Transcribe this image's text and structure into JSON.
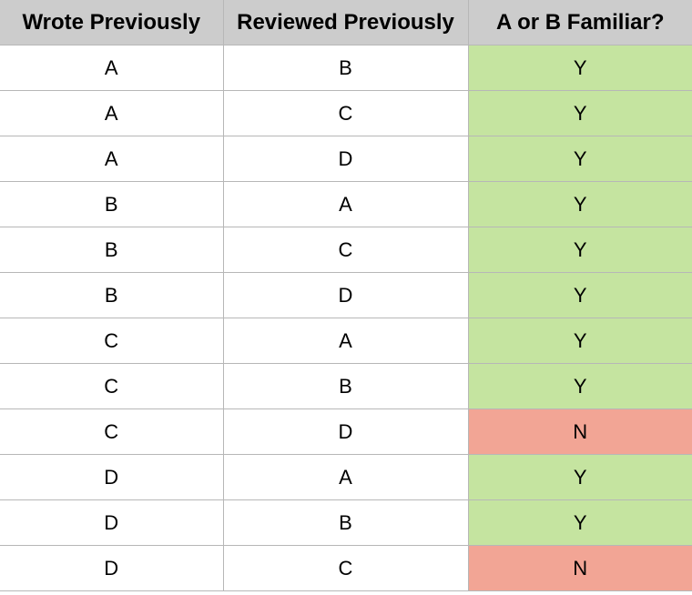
{
  "headers": [
    "Wrote Previously",
    "Reviewed Previously",
    "A or B Familiar?"
  ],
  "colors": {
    "header_bg": "#cccccc",
    "yes_bg": "#c5e4a0",
    "no_bg": "#f2a595",
    "grid": "#b7b7b7"
  },
  "rows": [
    {
      "wrote": "A",
      "reviewed": "B",
      "familiar": "Y"
    },
    {
      "wrote": "A",
      "reviewed": "C",
      "familiar": "Y"
    },
    {
      "wrote": "A",
      "reviewed": "D",
      "familiar": "Y"
    },
    {
      "wrote": "B",
      "reviewed": "A",
      "familiar": "Y"
    },
    {
      "wrote": "B",
      "reviewed": "C",
      "familiar": "Y"
    },
    {
      "wrote": "B",
      "reviewed": "D",
      "familiar": "Y"
    },
    {
      "wrote": "C",
      "reviewed": "A",
      "familiar": "Y"
    },
    {
      "wrote": "C",
      "reviewed": "B",
      "familiar": "Y"
    },
    {
      "wrote": "C",
      "reviewed": "D",
      "familiar": "N"
    },
    {
      "wrote": "D",
      "reviewed": "A",
      "familiar": "Y"
    },
    {
      "wrote": "D",
      "reviewed": "B",
      "familiar": "Y"
    },
    {
      "wrote": "D",
      "reviewed": "C",
      "familiar": "N"
    }
  ]
}
